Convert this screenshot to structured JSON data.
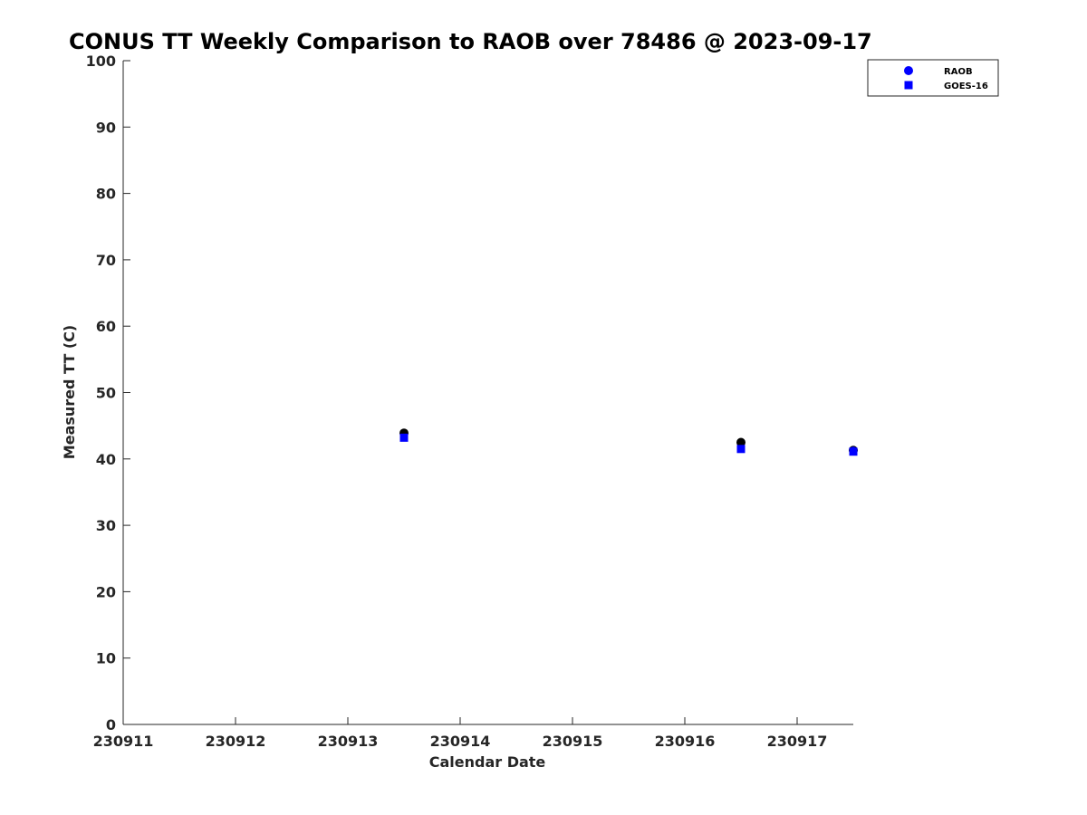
{
  "chart_data": {
    "type": "scatter",
    "title": "CONUS TT Weekly Comparison to RAOB over 78486 @ 2023-09-17",
    "xlabel": "Calendar Date",
    "ylabel": "Measured TT (C)",
    "x_tick_labels": [
      "230911",
      "230912",
      "230913",
      "230914",
      "230915",
      "230916",
      "230917"
    ],
    "xlim": [
      "2023-09-11T00:00",
      "2023-09-17T12:00"
    ],
    "ylim": [
      0,
      100
    ],
    "y_ticks": [
      0,
      10,
      20,
      30,
      40,
      50,
      60,
      70,
      80,
      90,
      100
    ],
    "legend_position": "top-right",
    "series": [
      {
        "name": "RAOB",
        "marker": "circle",
        "color": "#0000ff",
        "x": [
          "2023-09-13T12:00",
          "2023-09-16T12:00",
          "2023-09-17T12:00"
        ],
        "y": [
          43.9,
          42.5,
          41.3
        ]
      },
      {
        "name": "GOES-16",
        "marker": "square",
        "color": "#0000ff",
        "x": [
          "2023-09-13T12:00",
          "2023-09-16T12:00",
          "2023-09-17T12:00"
        ],
        "y": [
          43.2,
          41.5,
          41.1
        ]
      }
    ]
  }
}
